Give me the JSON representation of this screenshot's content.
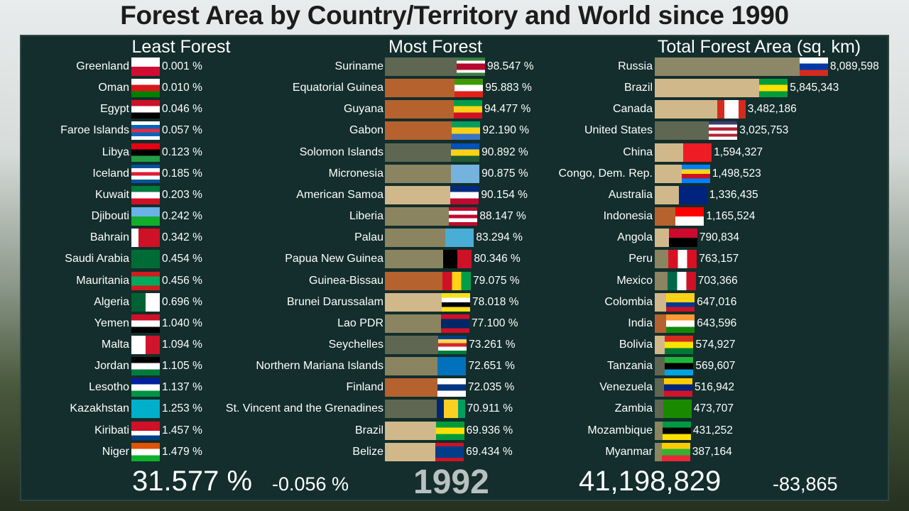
{
  "title": "Forest Area by Country/Territory and World since 1990",
  "colors": {
    "panel": "#132e2c",
    "orange": "#b5622f",
    "tan": "#d1b88a",
    "olive": "#8a8460",
    "gray": "#5f6752",
    "olive2": "#8c8766"
  },
  "chart_data": [
    {
      "type": "table",
      "title": "Least Forest",
      "unit": "%",
      "rows": [
        {
          "name": "Greenland",
          "value": "0.001 %",
          "flag": [
            "#ffffff",
            "#d00c33"
          ]
        },
        {
          "name": "Oman",
          "value": "0.010 %",
          "flag": [
            "#ffffff",
            "#db161b",
            "#008000"
          ]
        },
        {
          "name": "Egypt",
          "value": "0.046 %",
          "flag": [
            "#ce1126",
            "#ffffff",
            "#000000"
          ]
        },
        {
          "name": "Faroe Islands",
          "value": "0.057 %",
          "flag": [
            "#ffffff",
            "#0065bd",
            "#ed2939",
            "#0065bd",
            "#ffffff"
          ]
        },
        {
          "name": "Libya",
          "value": "0.123 %",
          "flag": [
            "#e70013",
            "#000000",
            "#239e46"
          ]
        },
        {
          "name": "Iceland",
          "value": "0.185 %",
          "flag": [
            "#02529c",
            "#ffffff",
            "#dc1e35",
            "#ffffff",
            "#02529c"
          ]
        },
        {
          "name": "Kuwait",
          "value": "0.203 %",
          "flag": [
            "#007a3d",
            "#ffffff",
            "#ce1126"
          ]
        },
        {
          "name": "Djibouti",
          "value": "0.242 %",
          "flag": [
            "#6ab2e7",
            "#12ad2b"
          ]
        },
        {
          "name": "Bahrain",
          "value": "0.342 %",
          "flag": [
            "#ffffff",
            "#ce1126",
            "#ce1126",
            "#ce1126"
          ],
          "dir": "v"
        },
        {
          "name": "Saudi Arabia",
          "value": "0.454 %",
          "flag": [
            "#006c35"
          ]
        },
        {
          "name": "Mauritania",
          "value": "0.456 %",
          "flag": [
            "#d01c1f",
            "#00a95c",
            "#00a95c",
            "#d01c1f"
          ]
        },
        {
          "name": "Algeria",
          "value": "0.696 %",
          "flag": [
            "#006233",
            "#ffffff"
          ],
          "dir": "v"
        },
        {
          "name": "Yemen",
          "value": "1.040 %",
          "flag": [
            "#ce1126",
            "#ffffff",
            "#000000"
          ]
        },
        {
          "name": "Malta",
          "value": "1.094 %",
          "flag": [
            "#ffffff",
            "#cf142b"
          ],
          "dir": "v"
        },
        {
          "name": "Jordan",
          "value": "1.105 %",
          "flag": [
            "#000000",
            "#ffffff",
            "#007a3d"
          ]
        },
        {
          "name": "Lesotho",
          "value": "1.137 %",
          "flag": [
            "#00209f",
            "#ffffff",
            "#009543"
          ]
        },
        {
          "name": "Kazakhstan",
          "value": "1.253 %",
          "flag": [
            "#00afca"
          ]
        },
        {
          "name": "Kiribati",
          "value": "1.457 %",
          "flag": [
            "#ce1126",
            "#ce1126",
            "#ffffff",
            "#003f87"
          ]
        },
        {
          "name": "Niger",
          "value": "1.479 %",
          "flag": [
            "#e05206",
            "#ffffff",
            "#0db02b"
          ]
        }
      ]
    },
    {
      "type": "bar",
      "title": "Most Forest",
      "unit": "%",
      "rows": [
        {
          "name": "Suriname",
          "value": 98.547,
          "label": "98.547 %",
          "color": "gray",
          "flag": [
            "#377e3f",
            "#ffffff",
            "#b40a2d",
            "#b40a2d",
            "#ffffff",
            "#377e3f"
          ]
        },
        {
          "name": "Equatorial Guinea",
          "value": 95.883,
          "label": "95.883 %",
          "color": "orange",
          "flag": [
            "#3e9a00",
            "#ffffff",
            "#e32118"
          ]
        },
        {
          "name": "Guyana",
          "value": 94.477,
          "label": "94.477 %",
          "color": "orange",
          "flag": [
            "#009e49",
            "#fcd116",
            "#ce1126"
          ]
        },
        {
          "name": "Gabon",
          "value": 92.19,
          "label": "92.190 %",
          "color": "orange",
          "flag": [
            "#009e60",
            "#fcd116",
            "#3a75c4"
          ]
        },
        {
          "name": "Solomon Islands",
          "value": 90.892,
          "label": "90.892 %",
          "color": "gray",
          "flag": [
            "#0051ba",
            "#fcd116",
            "#215b33"
          ]
        },
        {
          "name": "Micronesia",
          "value": 90.875,
          "label": "90.875 %",
          "color": "olive",
          "flag": [
            "#75b2dd"
          ]
        },
        {
          "name": "American Samoa",
          "value": 90.154,
          "label": "90.154 %",
          "color": "tan",
          "flag": [
            "#002b7f",
            "#ffffff",
            "#bf0a30"
          ]
        },
        {
          "name": "Liberia",
          "value": 88.147,
          "label": "88.147 %",
          "color": "olive",
          "flag": [
            "#bf0a30",
            "#ffffff",
            "#bf0a30",
            "#ffffff",
            "#bf0a30"
          ]
        },
        {
          "name": "Palau",
          "value": 83.294,
          "label": "83.294 %",
          "color": "olive",
          "flag": [
            "#4aadd6"
          ]
        },
        {
          "name": "Papua New Guinea",
          "value": 80.346,
          "label": "80.346 %",
          "color": "olive",
          "flag": [
            "#000000",
            "#ce1126"
          ],
          "dir": "v"
        },
        {
          "name": "Guinea-Bissau",
          "value": 79.075,
          "label": "79.075 %",
          "color": "orange",
          "flag": [
            "#ce1126",
            "#fcd116",
            "#009e49"
          ],
          "dir": "v"
        },
        {
          "name": "Brunei Darussalam",
          "value": 78.018,
          "label": "78.018 %",
          "color": "tan",
          "flag": [
            "#f7e017",
            "#ffffff",
            "#000000",
            "#f7e017"
          ]
        },
        {
          "name": "Lao PDR",
          "value": 77.1,
          "label": "77.100 %",
          "color": "olive",
          "flag": [
            "#ce1126",
            "#002868",
            "#002868",
            "#ce1126"
          ]
        },
        {
          "name": "Seychelles",
          "value": 73.261,
          "label": "73.261 %",
          "color": "gray",
          "flag": [
            "#003f87",
            "#fcd856",
            "#d62828",
            "#ffffff",
            "#007a3d"
          ]
        },
        {
          "name": "Northern Mariana Islands",
          "value": 72.651,
          "label": "72.651 %",
          "color": "olive",
          "flag": [
            "#0071bc"
          ]
        },
        {
          "name": "Finland",
          "value": 72.035,
          "label": "72.035 %",
          "color": "orange",
          "flag": [
            "#ffffff",
            "#003580",
            "#ffffff"
          ]
        },
        {
          "name": "St. Vincent and the Grenadines",
          "value": 70.911,
          "label": "70.911 %",
          "color": "gray",
          "flag": [
            "#002674",
            "#fcd022",
            "#fcd022",
            "#009e60"
          ],
          "dir": "v"
        },
        {
          "name": "Brazil",
          "value": 69.936,
          "label": "69.936 %",
          "color": "tan",
          "flag": [
            "#009c3b",
            "#ffdf00",
            "#009c3b"
          ]
        },
        {
          "name": "Belize",
          "value": 69.434,
          "label": "69.434 %",
          "color": "tan",
          "flag": [
            "#ce1126",
            "#003f87",
            "#003f87",
            "#003f87",
            "#ce1126"
          ]
        }
      ]
    },
    {
      "type": "bar",
      "title": "Total Forest Area (sq. km)",
      "unit": "sq. km",
      "rows": [
        {
          "name": "Russia",
          "value": 8089598,
          "label": "8,089,598",
          "color": "olive2",
          "flag": [
            "#ffffff",
            "#0039a6",
            "#d52b1e"
          ]
        },
        {
          "name": "Brazil",
          "value": 5845343,
          "label": "5,845,343",
          "color": "tan",
          "flag": [
            "#009c3b",
            "#ffdf00",
            "#009c3b"
          ]
        },
        {
          "name": "Canada",
          "value": 3482186,
          "label": "3,482,186",
          "color": "tan",
          "flag": [
            "#d52b1e",
            "#ffffff",
            "#ffffff",
            "#d52b1e"
          ],
          "dir": "v"
        },
        {
          "name": "United States",
          "value": 3025753,
          "label": "3,025,753",
          "color": "gray",
          "flag": [
            "#3c3b6e",
            "#ffffff",
            "#b22234",
            "#ffffff",
            "#b22234",
            "#ffffff"
          ]
        },
        {
          "name": "China",
          "value": 1594327,
          "label": "1,594,327",
          "color": "tan",
          "flag": [
            "#ee1c25"
          ]
        },
        {
          "name": "Congo, Dem. Rep.",
          "value": 1498523,
          "label": "1,498,523",
          "color": "tan",
          "flag": [
            "#007fff",
            "#f7d618",
            "#ce1021",
            "#007fff"
          ]
        },
        {
          "name": "Australia",
          "value": 1336435,
          "label": "1,336,435",
          "color": "tan",
          "flag": [
            "#00247d"
          ]
        },
        {
          "name": "Indonesia",
          "value": 1165524,
          "label": "1,165,524",
          "color": "orange",
          "flag": [
            "#ff0000",
            "#ffffff"
          ]
        },
        {
          "name": "Angola",
          "value": 790834,
          "label": "790,834",
          "color": "tan",
          "flag": [
            "#cc092f",
            "#000000"
          ]
        },
        {
          "name": "Peru",
          "value": 763157,
          "label": "763,157",
          "color": "olive",
          "flag": [
            "#d91023",
            "#ffffff",
            "#d91023"
          ],
          "dir": "v"
        },
        {
          "name": "Mexico",
          "value": 703366,
          "label": "703,366",
          "color": "olive",
          "flag": [
            "#006847",
            "#ffffff",
            "#ce1126"
          ],
          "dir": "v"
        },
        {
          "name": "Colombia",
          "value": 647016,
          "label": "647,016",
          "color": "tan",
          "flag": [
            "#fcd116",
            "#fcd116",
            "#003893",
            "#ce1126"
          ]
        },
        {
          "name": "India",
          "value": 643596,
          "label": "643,596",
          "color": "orange",
          "flag": [
            "#ff9933",
            "#ffffff",
            "#138808"
          ]
        },
        {
          "name": "Bolivia",
          "value": 574927,
          "label": "574,927",
          "color": "tan",
          "flag": [
            "#d52b1e",
            "#f9e300",
            "#007934"
          ]
        },
        {
          "name": "Tanzania",
          "value": 569607,
          "label": "569,607",
          "color": "gray",
          "flag": [
            "#1eb53a",
            "#000000",
            "#00a3dd"
          ]
        },
        {
          "name": "Venezuela",
          "value": 516942,
          "label": "516,942",
          "color": "gray",
          "flag": [
            "#ffcc00",
            "#00247d",
            "#cf142b"
          ]
        },
        {
          "name": "Zambia",
          "value": 473707,
          "label": "473,707",
          "color": "gray",
          "flag": [
            "#198a00"
          ]
        },
        {
          "name": "Mozambique",
          "value": 431252,
          "label": "431,252",
          "color": "olive",
          "flag": [
            "#009a44",
            "#000000",
            "#fce100"
          ]
        },
        {
          "name": "Myanmar",
          "value": 387164,
          "label": "387,164",
          "color": "olive",
          "flag": [
            "#fecb00",
            "#34b233",
            "#ea2839"
          ]
        }
      ]
    }
  ],
  "footer": {
    "world_pct": "31.577 %",
    "pct_change": "-0.056 %",
    "year": "1992",
    "world_total": "41,198,829",
    "total_change": "-83,865"
  }
}
